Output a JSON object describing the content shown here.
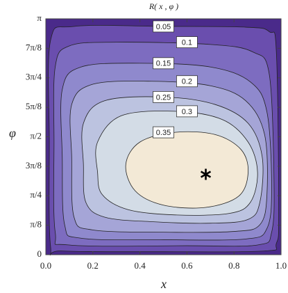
{
  "chart_data": {
    "type": "contour",
    "title": "R( x , φ )",
    "x_label": "x",
    "y_label": "φ",
    "xlim": [
      0,
      1
    ],
    "ylim": [
      0,
      3.1416
    ],
    "xticks": [
      {
        "value": 0,
        "label": "0.0"
      },
      {
        "value": 0.2,
        "label": "0.2"
      },
      {
        "value": 0.4,
        "label": "0.4"
      },
      {
        "value": 0.6,
        "label": "0.6"
      },
      {
        "value": 0.8,
        "label": "0.8"
      },
      {
        "value": 1,
        "label": "1.0"
      }
    ],
    "yticks": [
      0,
      {
        "value": 0.3927,
        "label": "π/8"
      },
      {
        "value": 0.7854,
        "label": "π/4"
      },
      {
        "value": 1.1781,
        "label": "3π/8"
      },
      {
        "value": 1.5708,
        "label": "π/2"
      },
      {
        "value": 1.9635,
        "label": "5π/8"
      },
      {
        "value": 2.3562,
        "label": "3π/4"
      },
      {
        "value": 2.7489,
        "label": "7π/8"
      },
      {
        "value": 3.1416,
        "label": "π"
      }
    ],
    "background": "#4a2a8a",
    "contours": [
      {
        "level": 0.05,
        "color": "#6a4eae",
        "x": [
          0.02,
          0.12,
          0.5,
          0.85,
          0.95,
          0.98,
          0.99,
          0.98,
          0.93,
          0.5,
          0.07,
          0.02,
          0.015
        ],
        "y": [
          2.85,
          3.04,
          3.04,
          3.03,
          2.97,
          2.7,
          0.6,
          0.15,
          0.05,
          0.04,
          0.05,
          0.12,
          1.5
        ]
      },
      {
        "level": 0.1,
        "color": "#7d6cc0",
        "x": [
          0.04,
          0.1,
          0.3,
          0.7,
          0.88,
          0.95,
          0.97,
          0.96,
          0.9,
          0.6,
          0.1,
          0.04,
          0.035
        ],
        "y": [
          2.5,
          2.78,
          2.83,
          2.8,
          2.7,
          2.4,
          1.0,
          0.3,
          0.13,
          0.12,
          0.13,
          0.3,
          1.5
        ]
      },
      {
        "level": 0.15,
        "color": "#8f89cd",
        "x": [
          0.07,
          0.15,
          0.4,
          0.7,
          0.87,
          0.94,
          0.96,
          0.94,
          0.85,
          0.5,
          0.15,
          0.08,
          0.07
        ],
        "y": [
          2.2,
          2.5,
          2.55,
          2.5,
          2.3,
          1.9,
          0.9,
          0.35,
          0.21,
          0.2,
          0.22,
          0.4,
          1.3
        ]
      },
      {
        "level": 0.2,
        "color": "#a5a5d7",
        "x": [
          0.11,
          0.2,
          0.45,
          0.7,
          0.85,
          0.93,
          0.94,
          0.91,
          0.8,
          0.5,
          0.2,
          0.12,
          0.11
        ],
        "y": [
          2.0,
          2.27,
          2.31,
          2.25,
          2.05,
          1.6,
          0.8,
          0.4,
          0.31,
          0.3,
          0.33,
          0.5,
          1.3
        ]
      },
      {
        "level": 0.25,
        "color": "#bcc3e0",
        "x": [
          0.16,
          0.25,
          0.5,
          0.72,
          0.86,
          0.92,
          0.91,
          0.86,
          0.7,
          0.45,
          0.25,
          0.17,
          0.16
        ],
        "y": [
          1.75,
          2.05,
          2.1,
          2.0,
          1.75,
          1.3,
          0.7,
          0.47,
          0.42,
          0.44,
          0.5,
          0.7,
          1.2
        ]
      },
      {
        "level": 0.3,
        "color": "#d3dce6",
        "x": [
          0.22,
          0.32,
          0.55,
          0.75,
          0.86,
          0.9,
          0.87,
          0.78,
          0.55,
          0.35,
          0.24,
          0.22
        ],
        "y": [
          1.5,
          1.85,
          1.91,
          1.8,
          1.5,
          1.1,
          0.7,
          0.55,
          0.53,
          0.6,
          0.8,
          1.1
        ]
      },
      {
        "level": 0.35,
        "color": "#f3e9d6",
        "x": [
          0.34,
          0.4,
          0.55,
          0.72,
          0.83,
          0.86,
          0.82,
          0.68,
          0.5,
          0.38
        ],
        "y": [
          1.2,
          1.5,
          1.63,
          1.6,
          1.4,
          1.1,
          0.78,
          0.63,
          0.66,
          0.85
        ]
      }
    ],
    "marker": {
      "x": 0.68,
      "y": 1.07
    }
  }
}
